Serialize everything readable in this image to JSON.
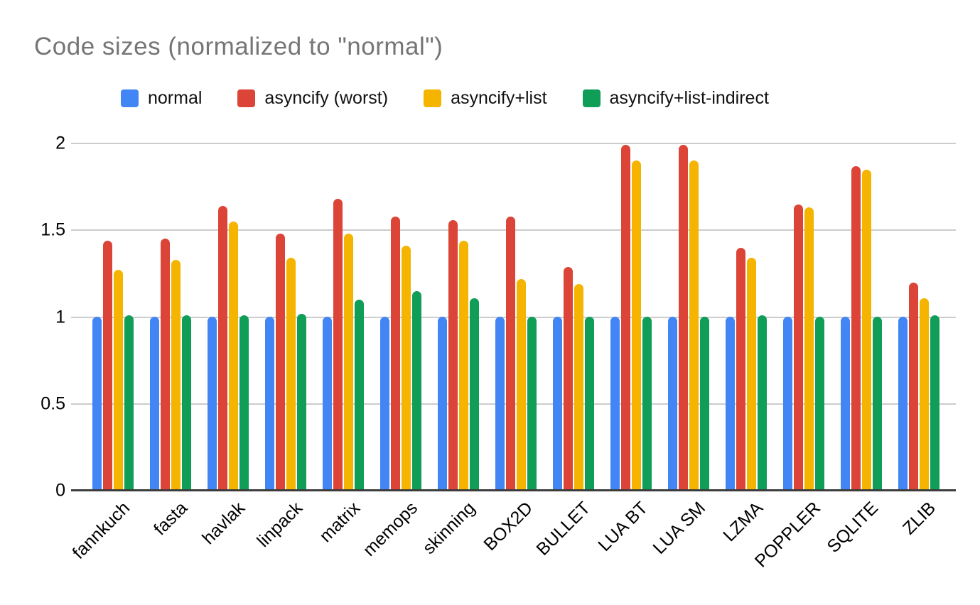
{
  "chart_data": {
    "type": "bar",
    "title": "Code sizes (normalized to \"normal\")",
    "xlabel": "",
    "ylabel": "",
    "ylim": [
      0,
      2
    ],
    "y_ticks": [
      0,
      0.5,
      1,
      1.5,
      2
    ],
    "grid": true,
    "legend_position": "top",
    "categories": [
      "fannkuch",
      "fasta",
      "havlak",
      "linpack",
      "matrix",
      "memops",
      "skinning",
      "BOX2D",
      "BULLET",
      "LUA BT",
      "LUA SM",
      "LZMA",
      "POPPLER",
      "SQLITE",
      "ZLIB"
    ],
    "series": [
      {
        "name": "normal",
        "color": "#4285F4",
        "values": [
          1.0,
          1.0,
          1.0,
          1.0,
          1.0,
          1.0,
          1.0,
          1.0,
          1.0,
          1.0,
          1.0,
          1.0,
          1.0,
          1.0,
          1.0
        ]
      },
      {
        "name": "asyncify (worst)",
        "color": "#DB4437",
        "values": [
          1.44,
          1.45,
          1.64,
          1.48,
          1.68,
          1.58,
          1.56,
          1.58,
          1.29,
          1.99,
          1.99,
          1.4,
          1.65,
          1.87,
          1.2
        ]
      },
      {
        "name": "asyncify+list",
        "color": "#F4B400",
        "values": [
          1.27,
          1.33,
          1.55,
          1.34,
          1.48,
          1.41,
          1.44,
          1.22,
          1.19,
          1.9,
          1.9,
          1.34,
          1.63,
          1.85,
          1.11
        ]
      },
      {
        "name": "asyncify+list-indirect",
        "color": "#0F9D58",
        "values": [
          1.01,
          1.01,
          1.01,
          1.02,
          1.1,
          1.15,
          1.11,
          1.0,
          1.0,
          1.0,
          1.0,
          1.01,
          1.0,
          1.0,
          1.01
        ]
      }
    ]
  }
}
